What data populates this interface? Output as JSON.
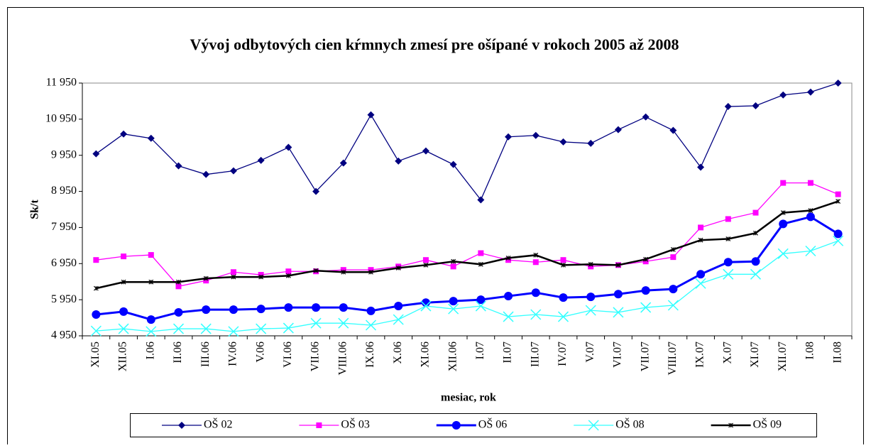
{
  "chart_data": {
    "type": "line",
    "title": "Vývoj odbytových cien kŕmnych zmesí pre ošípané v rokoch 2005 až 2008",
    "x_label": "mesiac, rok",
    "y_label": "Sk/t",
    "categories": [
      "XI.05",
      "XII.05",
      "I.06",
      "II.06",
      "III.06",
      "IV.06",
      "V.06",
      "VI.06",
      "VII.06",
      "VIII.06",
      "IX.06",
      "X.06",
      "XI.06",
      "XII.06",
      "I.07",
      "II.07",
      "III.07",
      "IV.07",
      "V.07",
      "VI.07",
      "VII.07",
      "VIII.07",
      "IX.07",
      "X.07",
      "XI.07",
      "XII.07",
      "I.08",
      "II.08"
    ],
    "ylim": [
      4950,
      11950
    ],
    "yticks": [
      {
        "value": 4950,
        "label": "4 950"
      },
      {
        "value": 5950,
        "label": "5 950"
      },
      {
        "value": 6950,
        "label": "6 950"
      },
      {
        "value": 7950,
        "label": "7 950"
      },
      {
        "value": 8950,
        "label": "8 950"
      },
      {
        "value": 9950,
        "label": "9 950"
      },
      {
        "value": 10950,
        "label": "10 950"
      },
      {
        "value": 11950,
        "label": "11 950"
      }
    ],
    "legend": "bottom",
    "series": [
      {
        "name": "OŠ 02",
        "color": "#000080",
        "marker": "diamond",
        "values": [
          9990,
          10540,
          10420,
          9656,
          9420,
          9520,
          9810,
          10170,
          8950,
          9735,
          11070,
          9790,
          10070,
          9695,
          8715,
          10460,
          10500,
          10320,
          10280,
          10660,
          11010,
          10640,
          9620,
          11300,
          11320,
          11620,
          11700,
          11950
        ]
      },
      {
        "name": "OŠ 03",
        "color": "#ff00ff",
        "marker": "square",
        "values": [
          7050,
          7150,
          7190,
          6320,
          6480,
          6715,
          6640,
          6735,
          6735,
          6775,
          6775,
          6870,
          7050,
          6870,
          7240,
          7050,
          6990,
          7050,
          6870,
          6910,
          7010,
          7130,
          7950,
          8185,
          8360,
          9185,
          9185,
          8870
        ]
      },
      {
        "name": "OŠ 06",
        "color": "#0000ff",
        "marker": "circle",
        "values": [
          5540,
          5620,
          5400,
          5600,
          5675,
          5675,
          5695,
          5735,
          5735,
          5735,
          5640,
          5775,
          5870,
          5910,
          5950,
          6050,
          6145,
          6010,
          6030,
          6105,
          6205,
          6245,
          6655,
          6990,
          7010,
          8050,
          8245,
          7775
        ]
      },
      {
        "name": "OŠ 08",
        "color": "#33ffff",
        "marker": "x",
        "values": [
          5085,
          5145,
          5070,
          5145,
          5145,
          5070,
          5145,
          5165,
          5300,
          5300,
          5245,
          5400,
          5775,
          5695,
          5775,
          5480,
          5540,
          5480,
          5655,
          5600,
          5735,
          5795,
          6400,
          6655,
          6655,
          7225,
          7300,
          7580
        ]
      },
      {
        "name": "OŠ 09",
        "color": "#000000",
        "marker": "star",
        "values": [
          6265,
          6440,
          6440,
          6440,
          6540,
          6580,
          6580,
          6615,
          6755,
          6715,
          6715,
          6830,
          6910,
          7010,
          6930,
          7105,
          7185,
          6910,
          6930,
          6910,
          7070,
          7340,
          7600,
          7635,
          7795,
          8360,
          8420,
          8675
        ]
      }
    ]
  }
}
